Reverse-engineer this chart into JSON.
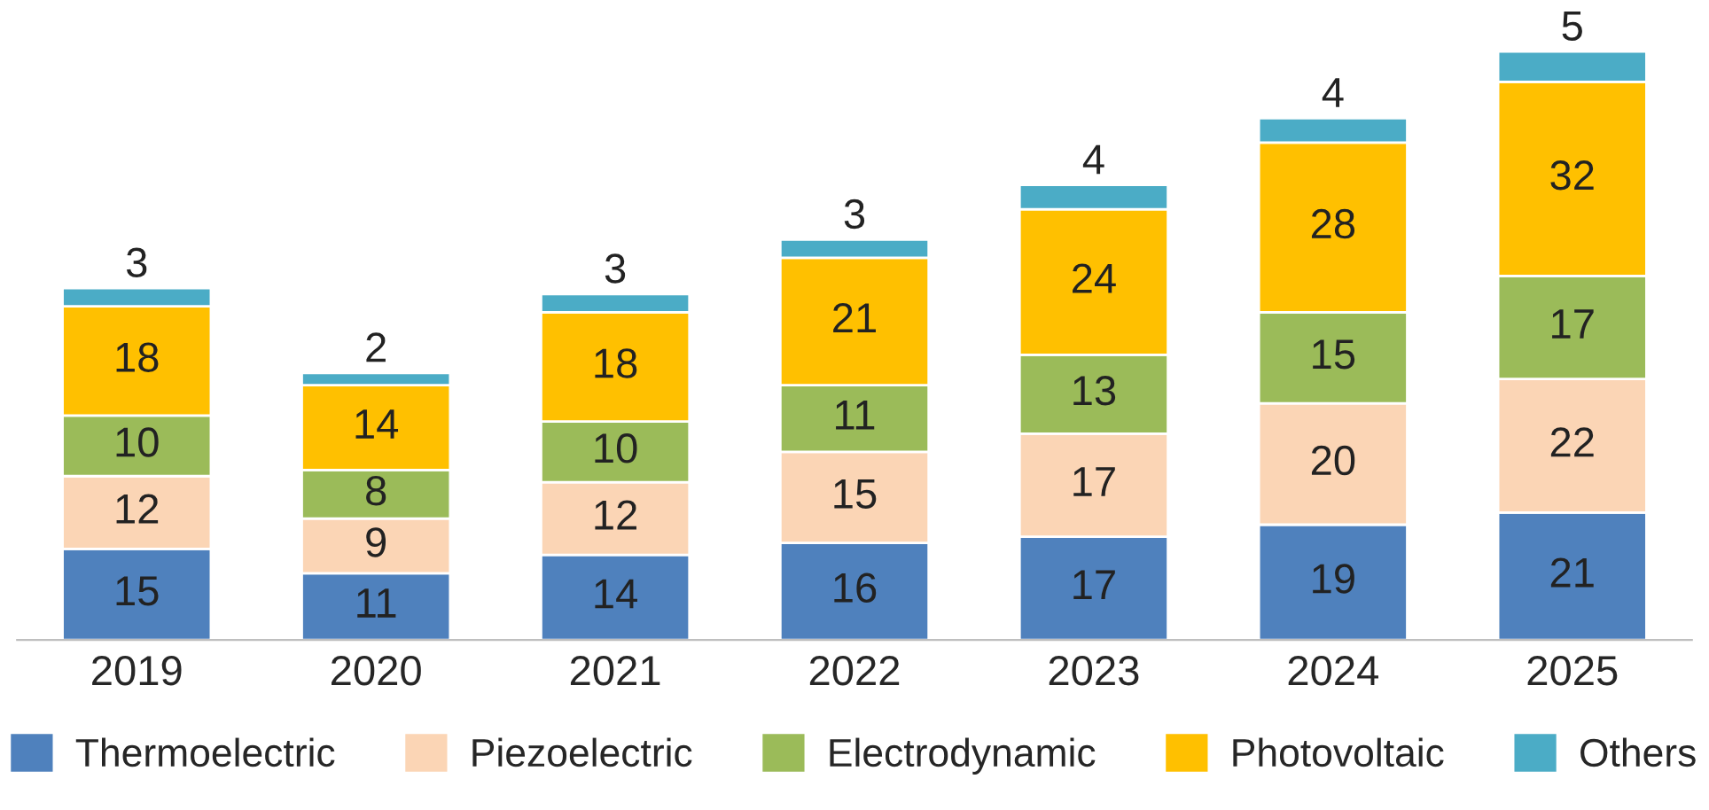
{
  "chart_data": {
    "type": "bar",
    "stacked": true,
    "data_labels": true,
    "legend": "bottom",
    "grid": false,
    "categories": [
      "2019",
      "2020",
      "2021",
      "2022",
      "2023",
      "2024",
      "2025"
    ],
    "series": [
      {
        "name": "Thermoelectric",
        "color": "#4f81bd",
        "values": [
          15,
          11,
          14,
          16,
          17,
          19,
          21
        ]
      },
      {
        "name": "Piezoelectric",
        "color": "#fbd5b5",
        "values": [
          12,
          9,
          12,
          15,
          17,
          20,
          22
        ]
      },
      {
        "name": "Electrodynamic",
        "color": "#9bbb59",
        "values": [
          10,
          8,
          10,
          11,
          13,
          15,
          17
        ]
      },
      {
        "name": "Photovoltaic",
        "color": "#ffc000",
        "values": [
          18,
          14,
          18,
          21,
          24,
          28,
          32
        ]
      },
      {
        "name": "Others",
        "color": "#4bacc6",
        "values": [
          3,
          2,
          3,
          3,
          4,
          4,
          5
        ]
      }
    ]
  }
}
